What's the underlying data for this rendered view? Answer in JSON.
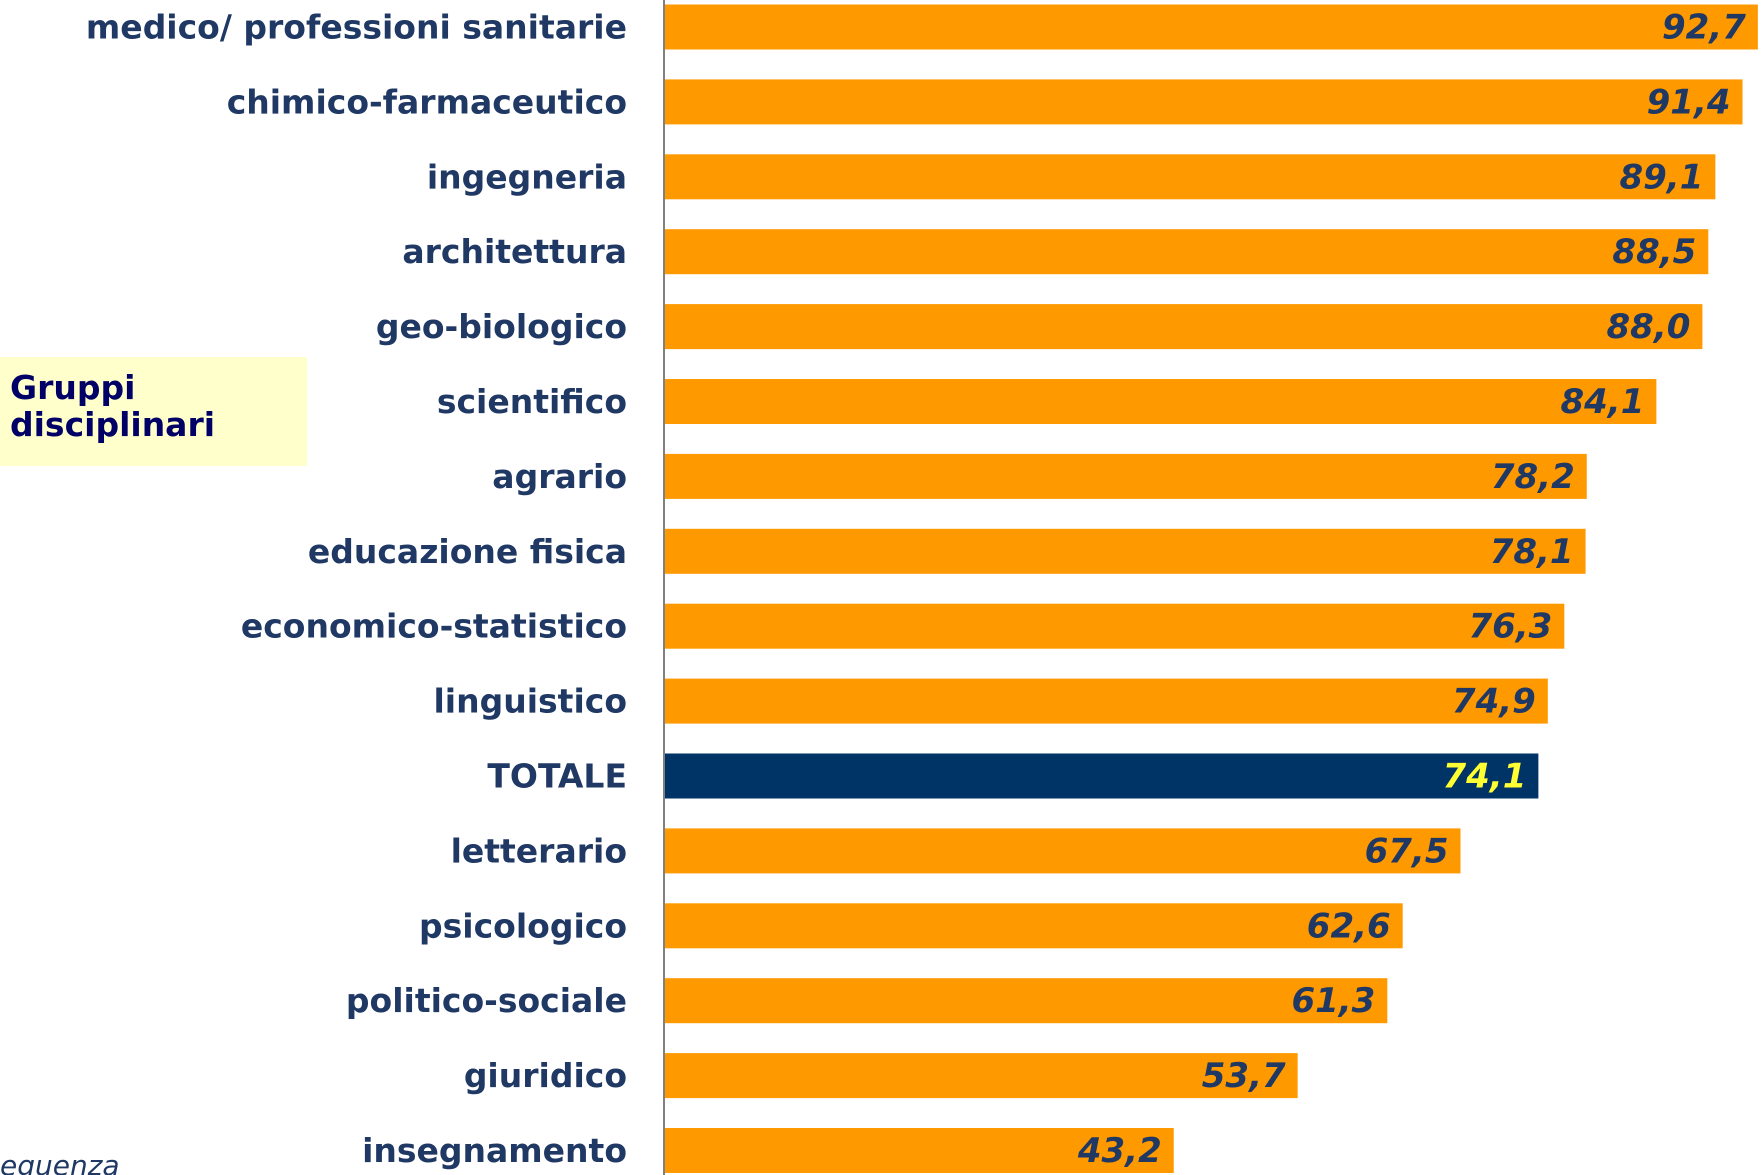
{
  "chart_data": {
    "type": "barh",
    "categories": [
      "medico/ professioni sanitarie",
      "chimico-farmaceutico",
      "ingegneria",
      "architettura",
      "geo-biologico",
      "scientifico",
      "agrario",
      "educazione fisica",
      "economico-statistico",
      "linguistico",
      "TOTALE",
      "letterario",
      "psicologico",
      "politico-sociale",
      "giuridico",
      "insegnamento"
    ],
    "values": [
      92.7,
      91.4,
      89.1,
      88.5,
      88.0,
      84.1,
      78.2,
      78.1,
      76.3,
      74.9,
      74.1,
      67.5,
      62.6,
      61.3,
      53.7,
      43.2
    ],
    "value_labels": [
      "92,7",
      "91,4",
      "89,1",
      "88,5",
      "88,0",
      "84,1",
      "78,2",
      "78,1",
      "76,3",
      "74,9",
      "74,1",
      "67,5",
      "62,6",
      "61,3",
      "53,7",
      "43,2"
    ],
    "colors": [
      "#ff9900",
      "#ff9900",
      "#ff9900",
      "#ff9900",
      "#ff9900",
      "#ff9900",
      "#ff9900",
      "#ff9900",
      "#ff9900",
      "#ff9900",
      "#003366",
      "#ff9900",
      "#ff9900",
      "#ff9900",
      "#ff9900",
      "#ff9900"
    ],
    "label_colors": [
      "#1f3864",
      "#1f3864",
      "#1f3864",
      "#1f3864",
      "#1f3864",
      "#1f3864",
      "#1f3864",
      "#1f3864",
      "#1f3864",
      "#1f3864",
      "#ffff33",
      "#1f3864",
      "#1f3864",
      "#1f3864",
      "#1f3864",
      "#1f3864"
    ],
    "legend_box": "Gruppi disciplinari",
    "footnote": "equenza"
  }
}
